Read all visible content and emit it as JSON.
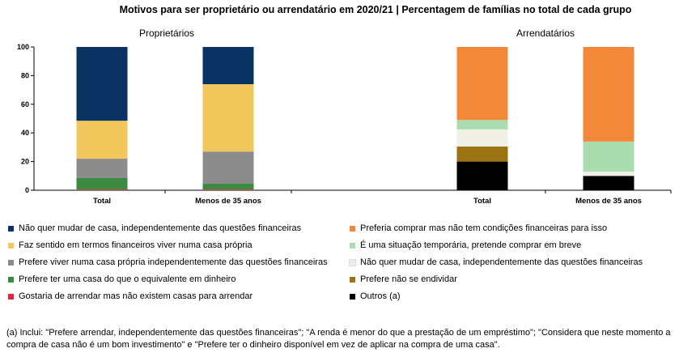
{
  "chart_data": {
    "type": "bar",
    "stacked": true,
    "title": "Motivos para ser proprietário ou arrendatário em 2020/21 | Percentagem de famílias no total de cada grupo",
    "ylim": [
      0,
      100
    ],
    "yticks": [
      "0",
      "20",
      "40",
      "60",
      "80",
      "100"
    ],
    "panels": [
      {
        "label": "Proprietários",
        "categories": [
          "Total",
          "Menos de 35 anos"
        ],
        "series": [
          {
            "name": "Gostaria de arrendar mas não existem casas para arrendar",
            "color": "#e5243b",
            "values": [
              0.5,
              0.5
            ]
          },
          {
            "name": "Prefere ter uma casa do que o equivalente em dinheiro",
            "color": "#3a8a3f",
            "values": [
              8,
              4
            ]
          },
          {
            "name": "Prefere viver numa casa própria independentemente das questões financeiras",
            "color": "#8c8c8c",
            "values": [
              13.5,
              22.5
            ]
          },
          {
            "name": "Faz sentido em termos financeiros viver numa casa própria",
            "color": "#f2c75c",
            "values": [
              26.5,
              47
            ]
          },
          {
            "name": "Não quer mudar de casa, independentemente das questões financeiras",
            "color": "#0a3262",
            "values": [
              51.5,
              26
            ]
          }
        ]
      },
      {
        "label": "Arrendatários",
        "categories": [
          "Total",
          "Menos de 35 anos"
        ],
        "series": [
          {
            "name": "Outros (a)",
            "color": "#000000",
            "values": [
              20,
              10
            ]
          },
          {
            "name": "Prefere não se endividar",
            "color": "#9a7412",
            "values": [
              10.5,
              0
            ]
          },
          {
            "name": "Não quer mudar de casa, independentemente das questões financeiras",
            "color": "#efefe6",
            "values": [
              12,
              3
            ]
          },
          {
            "name": "É uma situação temporária, pretende comprar em breve",
            "color": "#a9dcae",
            "values": [
              6.5,
              21
            ]
          },
          {
            "name": "Preferia comprar mas não tem condições financeiras para isso",
            "color": "#f4883a",
            "values": [
              51,
              66
            ]
          }
        ]
      }
    ]
  },
  "legend": [
    {
      "label": "Não quer mudar de casa, independentemente das questões financeiras",
      "color": "#0a3262"
    },
    {
      "label": "Preferia comprar mas não tem condições financeiras para isso",
      "color": "#f4883a"
    },
    {
      "label": "Faz sentido em termos financeiros viver numa casa própria",
      "color": "#f2c75c"
    },
    {
      "label": "É uma situação temporária, pretende comprar em breve",
      "color": "#a9dcae"
    },
    {
      "label": "Prefere viver numa casa própria independentemente das questões financeiras",
      "color": "#8c8c8c"
    },
    {
      "label": "Não quer mudar de casa, independentemente das questões financeiras",
      "color": "#efefe6"
    },
    {
      "label": "Prefere ter uma casa do que o equivalente em dinheiro",
      "color": "#3a8a3f"
    },
    {
      "label": "Prefere não se endividar",
      "color": "#9a7412"
    },
    {
      "label": "Gostaria de arrendar mas não existem casas para arrendar",
      "color": "#e5243b"
    },
    {
      "label": "Outros (a)",
      "color": "#000000"
    }
  ],
  "footnote": "(a) Inclui: \"Prefere arrendar, independentemente das questões financeiras\"; \"A renda é menor do que a prestação de um empréstimo\"; \"Considera que neste momento a compra de casa não é um bom investimento\" e \"Prefere ter o dinheiro disponível em vez de aplicar na compra de uma casa\"."
}
